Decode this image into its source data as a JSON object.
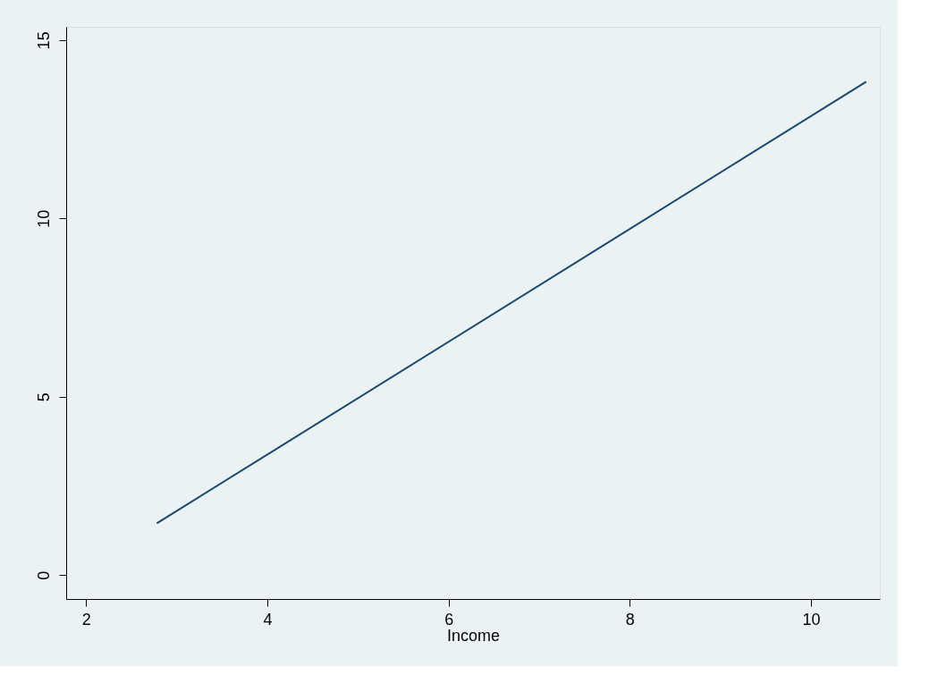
{
  "chart_data": {
    "type": "line",
    "xlabel": "Income",
    "x": [
      2.78,
      10.61
    ],
    "series": [
      {
        "color": "#1a476f",
        "values": [
          1.45,
          13.83
        ]
      }
    ],
    "xlim": [
      1.78,
      10.76
    ],
    "xticks": [
      2,
      4,
      6,
      8,
      10
    ],
    "ylim": [
      -0.67,
      15.37
    ],
    "yticks": [
      0,
      5,
      10,
      15
    ],
    "grid": "y",
    "legend": false,
    "marker": "none",
    "line_style": "solid"
  }
}
